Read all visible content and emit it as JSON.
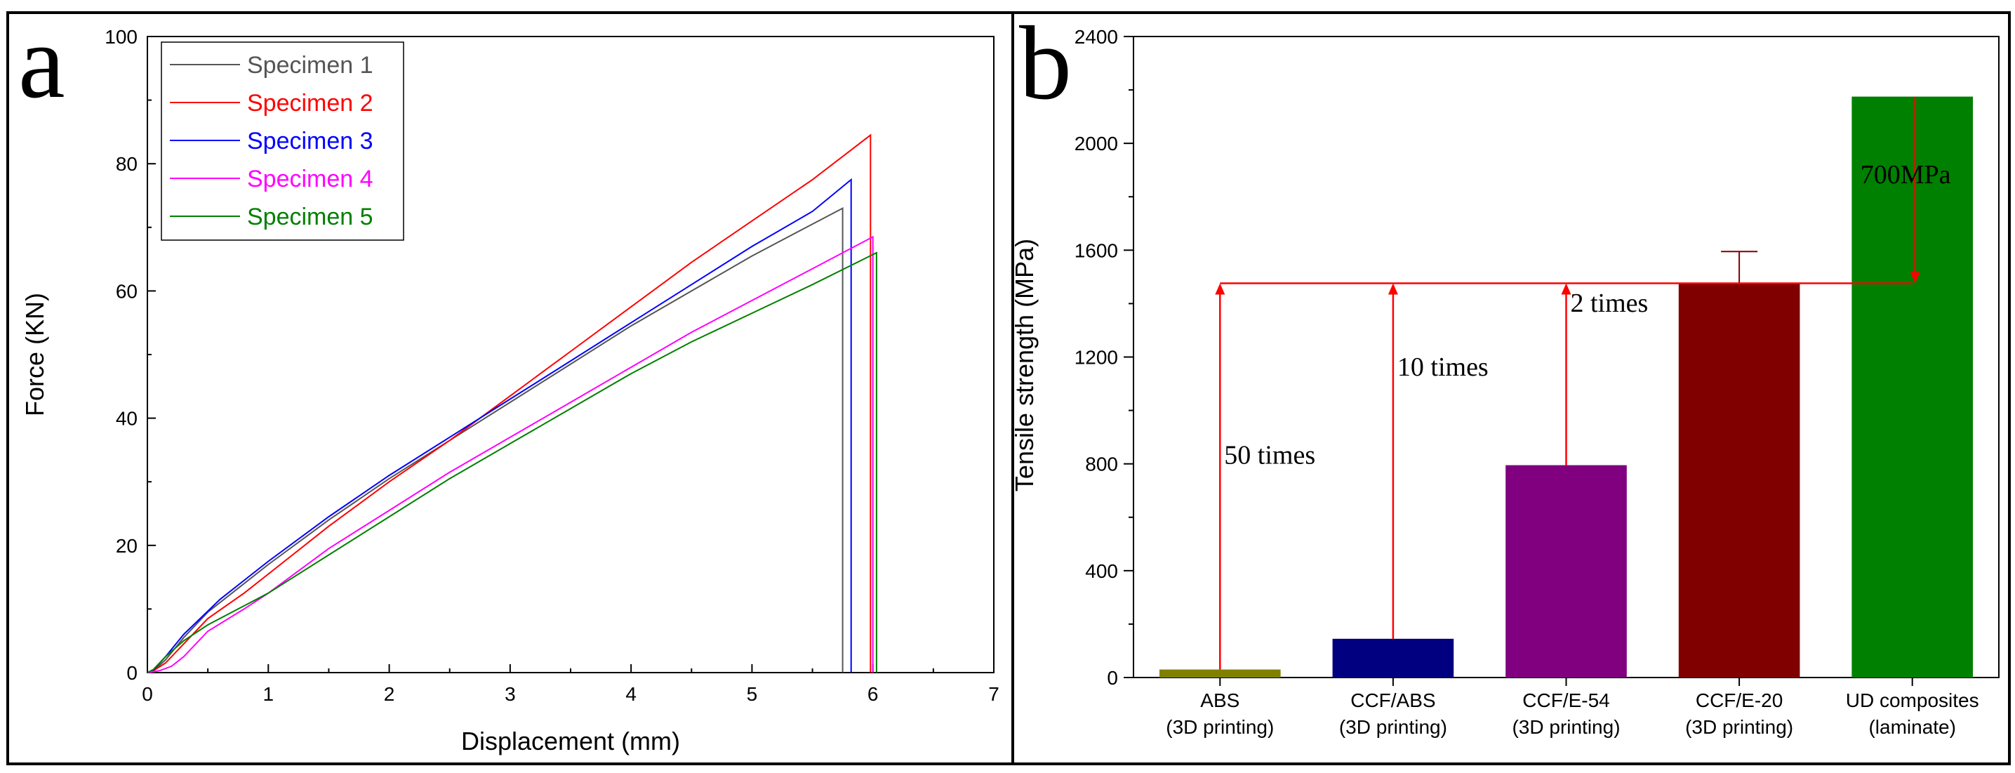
{
  "chart_data": [
    {
      "panel_label": "a",
      "type": "line",
      "xlabel": "Displacement (mm)",
      "ylabel": "Force (KN)",
      "xlim": [
        0,
        7
      ],
      "ylim": [
        0,
        100
      ],
      "x_ticks": [
        "0",
        "1",
        "2",
        "3",
        "4",
        "5",
        "6",
        "7"
      ],
      "y_ticks": [
        "0",
        "20",
        "40",
        "60",
        "80",
        "100"
      ],
      "legend_position": "top-left",
      "series": [
        {
          "name": "Specimen 1",
          "color": "#555555",
          "points": [
            [
              0,
              0
            ],
            [
              0.05,
              0.3
            ],
            [
              0.15,
              2
            ],
            [
              0.3,
              5.5
            ],
            [
              0.5,
              9.5
            ],
            [
              0.8,
              14
            ],
            [
              1.0,
              17
            ],
            [
              1.5,
              24
            ],
            [
              2.0,
              30.5
            ],
            [
              2.5,
              36.5
            ],
            [
              3.0,
              42.5
            ],
            [
              3.5,
              48.5
            ],
            [
              4.0,
              54.5
            ],
            [
              4.5,
              60
            ],
            [
              5.0,
              65.5
            ],
            [
              5.4,
              69.5
            ],
            [
              5.75,
              73
            ],
            [
              5.75,
              0
            ]
          ]
        },
        {
          "name": "Specimen 2",
          "color": "#ff0000",
          "points": [
            [
              0,
              0
            ],
            [
              0.05,
              0.3
            ],
            [
              0.15,
              1.5
            ],
            [
              0.3,
              4.5
            ],
            [
              0.5,
              8.5
            ],
            [
              0.8,
              12.5
            ],
            [
              1.0,
              15.5
            ],
            [
              1.5,
              23
            ],
            [
              2.0,
              30
            ],
            [
              2.5,
              36.5
            ],
            [
              3.0,
              43.5
            ],
            [
              3.5,
              50.5
            ],
            [
              4.0,
              57.5
            ],
            [
              4.5,
              64.5
            ],
            [
              5.0,
              71
            ],
            [
              5.5,
              77.5
            ],
            [
              5.98,
              84.5
            ],
            [
              5.98,
              0
            ]
          ]
        },
        {
          "name": "Specimen 3",
          "color": "#0000ff",
          "points": [
            [
              0,
              0
            ],
            [
              0.05,
              0.4
            ],
            [
              0.15,
              2.5
            ],
            [
              0.3,
              6
            ],
            [
              0.6,
              11.5
            ],
            [
              0.8,
              14.5
            ],
            [
              1.0,
              17.5
            ],
            [
              1.5,
              24.5
            ],
            [
              2.0,
              31
            ],
            [
              2.5,
              37
            ],
            [
              3.0,
              43
            ],
            [
              3.5,
              49
            ],
            [
              4.0,
              55
            ],
            [
              4.5,
              61
            ],
            [
              5.0,
              67
            ],
            [
              5.5,
              72.5
            ],
            [
              5.82,
              77.5
            ],
            [
              5.82,
              0
            ]
          ]
        },
        {
          "name": "Specimen 4",
          "color": "#ff00ff",
          "points": [
            [
              0,
              0
            ],
            [
              0.1,
              0.3
            ],
            [
              0.2,
              1
            ],
            [
              0.3,
              2.5
            ],
            [
              0.5,
              6.5
            ],
            [
              0.8,
              10
            ],
            [
              1.0,
              12.5
            ],
            [
              1.5,
              19.5
            ],
            [
              2.0,
              25.5
            ],
            [
              2.5,
              31.5
            ],
            [
              3.0,
              37
            ],
            [
              3.5,
              42.5
            ],
            [
              4.0,
              48
            ],
            [
              4.5,
              53.5
            ],
            [
              5.0,
              58.5
            ],
            [
              5.5,
              63.5
            ],
            [
              6.0,
              68.5
            ],
            [
              6.0,
              0
            ]
          ]
        },
        {
          "name": "Specimen 5",
          "color": "#008000",
          "points": [
            [
              0,
              0
            ],
            [
              0.05,
              0.5
            ],
            [
              0.15,
              2.5
            ],
            [
              0.3,
              5
            ],
            [
              0.5,
              7.5
            ],
            [
              0.8,
              10.5
            ],
            [
              1.0,
              12.5
            ],
            [
              1.5,
              18.5
            ],
            [
              2.0,
              24.5
            ],
            [
              2.5,
              30.5
            ],
            [
              3.0,
              36
            ],
            [
              3.5,
              41.5
            ],
            [
              4.0,
              47
            ],
            [
              4.5,
              52
            ],
            [
              5.0,
              56.5
            ],
            [
              5.5,
              61
            ],
            [
              6.03,
              66
            ],
            [
              6.03,
              0
            ]
          ]
        }
      ]
    },
    {
      "panel_label": "b",
      "type": "bar",
      "ylabel": "Tensile strength (MPa)",
      "ylim": [
        0,
        2400
      ],
      "y_ticks": [
        "0",
        "400",
        "800",
        "1200",
        "1600",
        "2000",
        "2400"
      ],
      "categories": [
        [
          "ABS",
          "(3D printing)"
        ],
        [
          "CCF/ABS",
          "(3D printing)"
        ],
        [
          "CCF/E-54",
          "(3D printing)"
        ],
        [
          "CCF/E-20",
          "(3D printing)"
        ],
        [
          "UD composites",
          "(laminate)"
        ]
      ],
      "values": [
        30,
        145,
        795,
        1476,
        2175
      ],
      "bar_colors": [
        "#808000",
        "#000080",
        "#800080",
        "#800000",
        "#008000"
      ],
      "error_bar": {
        "category_index": 3,
        "upper": 1595
      },
      "reference_level": 1476,
      "reference_color": "#ff0000",
      "annotations": [
        {
          "text": "50 times",
          "category_index": 0
        },
        {
          "text": "10 times",
          "category_index": 1
        },
        {
          "text": "2 times",
          "category_index": 2
        },
        {
          "text": "700MPa",
          "category_index": 4
        }
      ]
    }
  ]
}
